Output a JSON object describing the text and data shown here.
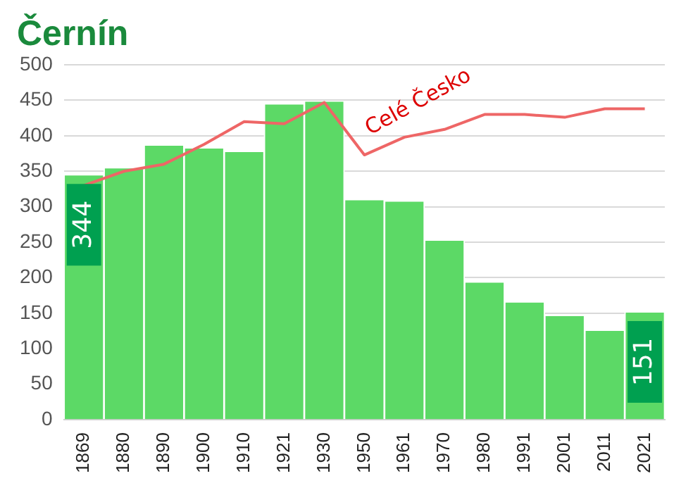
{
  "chart_data": {
    "type": "bar",
    "title": "Černín",
    "categories": [
      "1869",
      "1880",
      "1890",
      "1900",
      "1910",
      "1921",
      "1930",
      "1950",
      "1961",
      "1970",
      "1980",
      "1991",
      "2001",
      "2011",
      "2021"
    ],
    "series": [
      {
        "color": "#5cd966",
        "values": [
          344,
          354,
          386,
          382,
          377,
          444,
          448,
          309,
          307,
          252,
          193,
          165,
          146,
          125,
          151
        ],
        "value_labels": [
          "344",
          null,
          null,
          null,
          null,
          null,
          null,
          null,
          null,
          null,
          null,
          null,
          null,
          null,
          "151"
        ]
      },
      {
        "type": "line",
        "name": "Celé Česko",
        "color": "#ee6666",
        "values": [
          330,
          350,
          360,
          388,
          420,
          417,
          447,
          373,
          398,
          409,
          430,
          430,
          426,
          438,
          438
        ]
      }
    ],
    "ylim": [
      0,
      500
    ],
    "yticks": [
      0,
      50,
      100,
      150,
      200,
      250,
      300,
      350,
      400,
      450,
      500
    ],
    "grid": "y",
    "legend": false
  }
}
